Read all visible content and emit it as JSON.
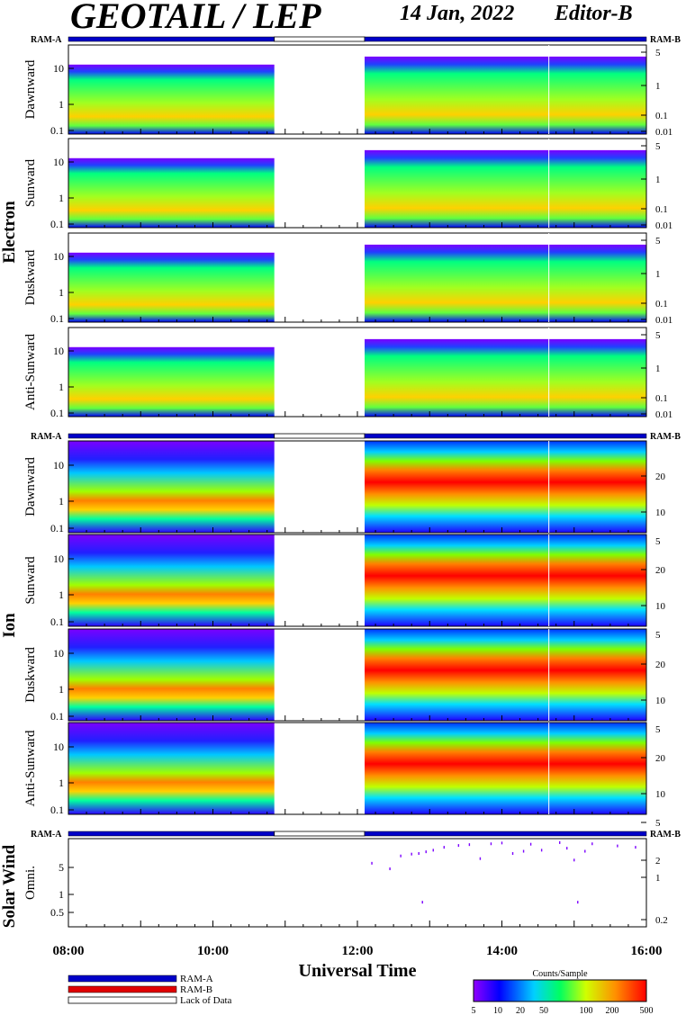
{
  "header": {
    "title": "GEOTAIL / LEP",
    "date": "14 Jan, 2022",
    "editor": "Editor-B"
  },
  "ram_bar": {
    "label_left": "RAM-A",
    "label_right": "RAM-B",
    "gap_start_hour": 10.85,
    "gap_end_hour": 12.1
  },
  "groups": [
    {
      "name": "Electron",
      "panels": [
        "Dawnward",
        "Sunward",
        "Duskward",
        "Anti-Sunward"
      ]
    },
    {
      "name": "Ion",
      "panels": [
        "Dawnward",
        "Sunward",
        "Duskward",
        "Anti-Sunward"
      ]
    },
    {
      "name": "Solar Wind",
      "panels": [
        "Omni."
      ]
    }
  ],
  "axes": {
    "electron_left_ticks": [
      "10",
      "1",
      "0.1"
    ],
    "electron_right_ticks": [
      "5",
      "1",
      "0.1",
      "0.01"
    ],
    "ion_left_ticks": [
      "10",
      "1",
      "0.1"
    ],
    "ion_right_ticks": [
      "20",
      "10",
      "5"
    ],
    "solar_left_ticks": [
      "5",
      "1",
      "0.5"
    ],
    "solar_right_ticks": [
      "2",
      "1",
      "0.2"
    ],
    "x_ticks": [
      "08:00",
      "10:00",
      "12:00",
      "14:00",
      "16:00"
    ],
    "xlabel": "Universal Time"
  },
  "chart_data": {
    "type": "heatmap",
    "x_range_hours": [
      8,
      16
    ],
    "data_gap_hours": [
      10.85,
      12.1
    ],
    "solar_wind_points": [
      {
        "t": 12.2,
        "v": 3.2
      },
      {
        "t": 12.45,
        "v": 2.6
      },
      {
        "t": 12.6,
        "v": 4.2
      },
      {
        "t": 12.75,
        "v": 4.5
      },
      {
        "t": 12.85,
        "v": 4.6
      },
      {
        "t": 12.9,
        "v": 0.75
      },
      {
        "t": 12.95,
        "v": 4.9
      },
      {
        "t": 13.05,
        "v": 5.2
      },
      {
        "t": 13.2,
        "v": 5.8
      },
      {
        "t": 13.4,
        "v": 6.2
      },
      {
        "t": 13.55,
        "v": 6.4
      },
      {
        "t": 13.7,
        "v": 3.8
      },
      {
        "t": 13.85,
        "v": 6.6
      },
      {
        "t": 14.0,
        "v": 6.8
      },
      {
        "t": 14.15,
        "v": 4.6
      },
      {
        "t": 14.3,
        "v": 5.0
      },
      {
        "t": 14.4,
        "v": 6.5
      },
      {
        "t": 14.55,
        "v": 5.2
      },
      {
        "t": 14.8,
        "v": 6.9
      },
      {
        "t": 14.9,
        "v": 5.6
      },
      {
        "t": 15.0,
        "v": 3.6
      },
      {
        "t": 15.05,
        "v": 0.75
      },
      {
        "t": 15.15,
        "v": 5.0
      },
      {
        "t": 15.25,
        "v": 6.6
      },
      {
        "t": 15.6,
        "v": 6.1
      },
      {
        "t": 15.85,
        "v": 5.8
      }
    ]
  },
  "legend": {
    "ram_a": "RAM-A",
    "ram_b": "RAM-B",
    "lack": "Lack of Data",
    "colorbar_title": "Counts/Sample",
    "colorbar_ticks": [
      "5",
      "10",
      "20",
      "50",
      "100",
      "200",
      "500"
    ],
    "colors": [
      "#7b00ff",
      "#0000ff",
      "#00c8ff",
      "#00ff60",
      "#d0ff00",
      "#ffc000",
      "#ff0000"
    ]
  }
}
